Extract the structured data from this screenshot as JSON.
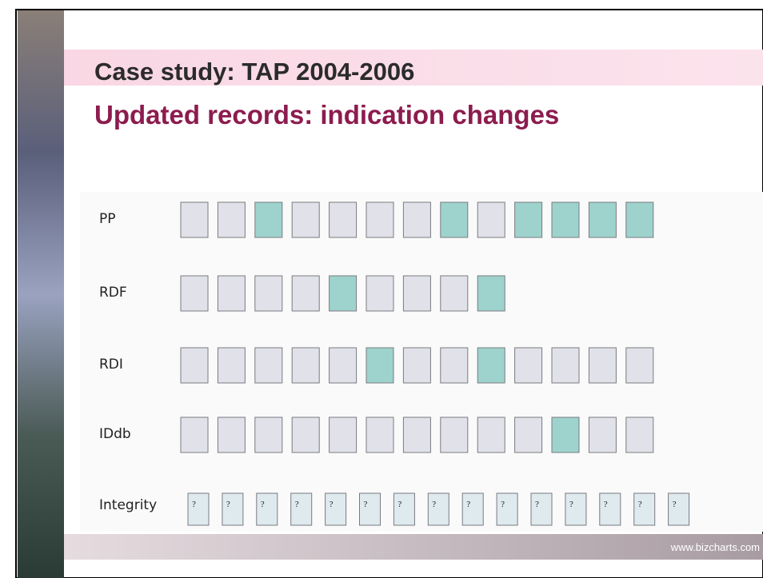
{
  "title": "Case study: TAP 2004-2006",
  "subtitle": "Updated records: indication changes",
  "rows": [
    {
      "label": "PP",
      "highlighted": [
        false,
        false,
        true,
        false,
        false,
        false,
        false,
        true,
        false,
        true,
        true,
        true,
        true
      ]
    },
    {
      "label": "RDF",
      "highlighted": [
        false,
        false,
        false,
        false,
        true,
        false,
        false,
        false,
        true
      ]
    },
    {
      "label": "RDI",
      "highlighted": [
        false,
        false,
        false,
        false,
        false,
        true,
        false,
        false,
        true,
        false,
        false,
        false,
        false
      ]
    },
    {
      "label": "IDdb",
      "highlighted": [
        false,
        false,
        false,
        false,
        false,
        false,
        false,
        false,
        false,
        false,
        true,
        false,
        false
      ]
    }
  ],
  "integrity": {
    "label": "Integrity",
    "boxes": [
      "?",
      "?",
      "?",
      "?",
      "?",
      "?",
      "?",
      "?",
      "?",
      "?",
      "?",
      "?",
      "?",
      "?",
      "?"
    ]
  },
  "footer": "www.bizcharts.com"
}
